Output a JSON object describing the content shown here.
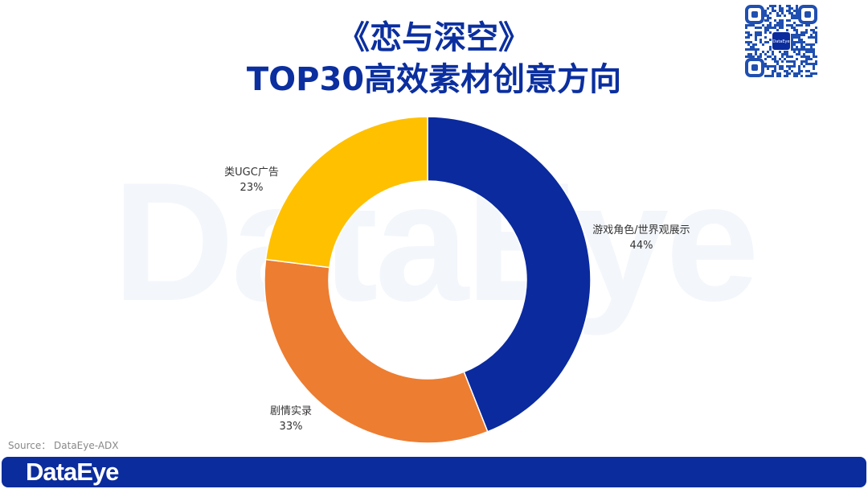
{
  "title_line1": "《恋与深空》",
  "title_line2": "TOP30高效素材创意方向",
  "watermark": "DataEye",
  "source": "Source：  DataEye-ADX",
  "footer_logo": "DataEye",
  "qr_logo": "DataEye",
  "chart_data": {
    "type": "pie",
    "donut": true,
    "categories": [
      "游戏角色/世界观展示",
      "剧情实录",
      "类UGC广告"
    ],
    "values": [
      44,
      33,
      23
    ],
    "labels": [
      "44%",
      "33%",
      "23%"
    ],
    "colors": [
      "#0A2A9E",
      "#ED7D31",
      "#FFC000"
    ],
    "start": "top",
    "direction": "clockwise",
    "legend": "none"
  }
}
